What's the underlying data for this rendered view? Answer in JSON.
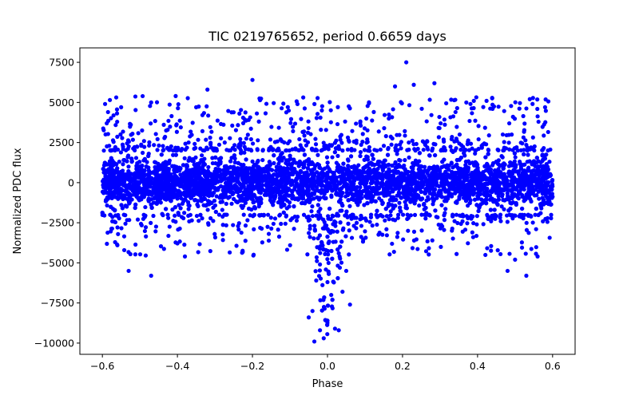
{
  "chart_data": {
    "type": "scatter",
    "title": "TIC 0219765652, period 0.6659 days",
    "xlabel": "Phase",
    "ylabel": "Normalized PDC flux",
    "xlim": [
      -0.66,
      0.66
    ],
    "ylim": [
      -10700,
      8400
    ],
    "grid": false,
    "legend": "none",
    "xticks": [
      -0.6,
      -0.4,
      -0.2,
      0.0,
      0.2,
      0.4,
      0.6
    ],
    "xtick_labels": [
      "−0.6",
      "−0.4",
      "−0.2",
      "0.0",
      "0.2",
      "0.4",
      "0.6"
    ],
    "yticks": [
      7500,
      5000,
      2500,
      0,
      -2500,
      -5000,
      -7500,
      -10000
    ],
    "ytick_labels": [
      "7500",
      "5000",
      "2500",
      "0",
      "−2500",
      "−5000",
      "−7500",
      "−10000"
    ],
    "series": [
      {
        "name": "PDC flux",
        "color": "#0000ff",
        "marker": "circle",
        "x_range": [
          -0.6,
          0.6
        ],
        "baseline_flux": 0,
        "typical_scatter": 1000,
        "eclipse": {
          "center_phase": 0.0,
          "half_width": 0.06,
          "min_flux": -9900
        },
        "points": [
          [
            -0.58,
            5150
          ],
          [
            -0.585,
            4400
          ],
          [
            -0.47,
            5000
          ],
          [
            -0.32,
            5800
          ],
          [
            -0.2,
            6400
          ],
          [
            0.21,
            7500
          ],
          [
            0.285,
            6200
          ],
          [
            0.23,
            6100
          ],
          [
            0.18,
            6000
          ],
          [
            -0.55,
            4700
          ],
          [
            -0.35,
            4700
          ],
          [
            -0.08,
            4900
          ],
          [
            -0.015,
            4500
          ],
          [
            0.39,
            5100
          ],
          [
            0.44,
            4600
          ],
          [
            0.58,
            4700
          ],
          [
            -0.53,
            -5500
          ],
          [
            -0.47,
            -5800
          ],
          [
            -0.56,
            -3900
          ],
          [
            -0.38,
            -4600
          ],
          [
            0.48,
            -5500
          ],
          [
            0.53,
            -5800
          ],
          [
            0.5,
            -4800
          ],
          [
            0.56,
            -4600
          ],
          [
            -0.04,
            -8000
          ],
          [
            -0.035,
            -9900
          ],
          [
            -0.02,
            -9200
          ],
          [
            -0.01,
            -9700
          ],
          [
            0.02,
            -9100
          ],
          [
            0.03,
            -9200
          ],
          [
            0.06,
            -7600
          ],
          [
            -0.05,
            -8400
          ],
          [
            0.0,
            -8600
          ],
          [
            0.04,
            -6800
          ],
          [
            -0.03,
            -6100
          ],
          [
            0.01,
            -7000
          ],
          [
            0.05,
            -5500
          ],
          [
            -0.02,
            -5100
          ],
          [
            0.03,
            -4400
          ],
          [
            0.0,
            -6200
          ]
        ]
      }
    ]
  }
}
